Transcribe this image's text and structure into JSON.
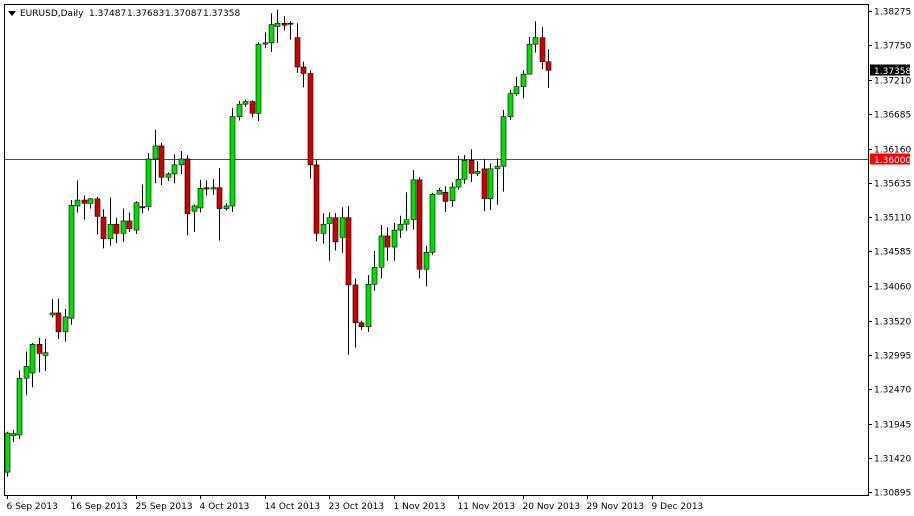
{
  "header": {
    "symbol": "EURUSD,Daily",
    "open": "1.37487",
    "high": "1.37683",
    "low": "1.37087",
    "close": "1.37358"
  },
  "colors": {
    "bull": "#00dd00",
    "bear": "#cc0000",
    "wick": "#000000",
    "level_line": "#ff0000",
    "level_tag": "#ff0000",
    "price_tag": "#000000",
    "background": "#ffffff"
  },
  "price_tag": {
    "label": "1.37358"
  },
  "level_tag": {
    "label": "1.36000"
  },
  "chart_data": {
    "type": "candlestick",
    "ylim": [
      1.3085,
      1.3836
    ],
    "grid": false,
    "y_ticks": [
      {
        "value": 1.38275,
        "label": "1.38275"
      },
      {
        "value": 1.3775,
        "label": "1.37750"
      },
      {
        "value": 1.3721,
        "label": "1.37210"
      },
      {
        "value": 1.36685,
        "label": "1.36685"
      },
      {
        "value": 1.3616,
        "label": "1.36160"
      },
      {
        "value": 1.35635,
        "label": "1.35635"
      },
      {
        "value": 1.3511,
        "label": "1.35110"
      },
      {
        "value": 1.34585,
        "label": "1.34585"
      },
      {
        "value": 1.3406,
        "label": "1.34060"
      },
      {
        "value": 1.3352,
        "label": "1.33520"
      },
      {
        "value": 1.32995,
        "label": "1.32995"
      },
      {
        "value": 1.3247,
        "label": "1.32470"
      },
      {
        "value": 1.31945,
        "label": "1.31945"
      },
      {
        "value": 1.3142,
        "label": "1.31420"
      },
      {
        "value": 1.30895,
        "label": "1.30895"
      }
    ],
    "x_ticks": [
      {
        "index": 0,
        "label": "6 Sep 2013"
      },
      {
        "index": 10,
        "label": "16 Sep 2013"
      },
      {
        "index": 20,
        "label": "25 Sep 2013"
      },
      {
        "index": 30,
        "label": "4 Oct 2013"
      },
      {
        "index": 40,
        "label": "14 Oct 2013"
      },
      {
        "index": 50,
        "label": "23 Oct 2013"
      },
      {
        "index": 60,
        "label": "1 Nov 2013"
      },
      {
        "index": 70,
        "label": "11 Nov 2013"
      },
      {
        "index": 80,
        "label": "20 Nov 2013"
      },
      {
        "index": 90,
        "label": "29 Nov 2013"
      },
      {
        "index": 100,
        "label": "9 Dec 2013"
      }
    ],
    "horizontal_line": 1.36,
    "candles": [
      {
        "o": 1.312,
        "h": 1.3182,
        "l": 1.3113,
        "c": 1.318
      },
      {
        "o": 1.3176,
        "h": 1.3185,
        "l": 1.3166,
        "c": 1.3179
      },
      {
        "o": 1.3177,
        "h": 1.3276,
        "l": 1.3171,
        "c": 1.3264
      },
      {
        "o": 1.3264,
        "h": 1.3305,
        "l": 1.3238,
        "c": 1.3282
      },
      {
        "o": 1.3272,
        "h": 1.3318,
        "l": 1.325,
        "c": 1.3316
      },
      {
        "o": 1.3316,
        "h": 1.3326,
        "l": 1.3273,
        "c": 1.3302
      },
      {
        "o": 1.3299,
        "h": 1.3324,
        "l": 1.3275,
        "c": 1.3303
      },
      {
        "o": 1.3361,
        "h": 1.3385,
        "l": 1.3357,
        "c": 1.3364
      },
      {
        "o": 1.3364,
        "h": 1.3386,
        "l": 1.3324,
        "c": 1.3335
      },
      {
        "o": 1.3335,
        "h": 1.337,
        "l": 1.332,
        "c": 1.3358
      },
      {
        "o": 1.3356,
        "h": 1.3537,
        "l": 1.3346,
        "c": 1.3529
      },
      {
        "o": 1.3528,
        "h": 1.3567,
        "l": 1.3518,
        "c": 1.3537
      },
      {
        "o": 1.3537,
        "h": 1.3544,
        "l": 1.3507,
        "c": 1.3532
      },
      {
        "o": 1.3532,
        "h": 1.354,
        "l": 1.3524,
        "c": 1.3539
      },
      {
        "o": 1.3539,
        "h": 1.3542,
        "l": 1.3484,
        "c": 1.3512
      },
      {
        "o": 1.3511,
        "h": 1.3523,
        "l": 1.3463,
        "c": 1.3478
      },
      {
        "o": 1.3478,
        "h": 1.3541,
        "l": 1.3467,
        "c": 1.35
      },
      {
        "o": 1.35,
        "h": 1.351,
        "l": 1.3471,
        "c": 1.3486
      },
      {
        "o": 1.3486,
        "h": 1.3524,
        "l": 1.3473,
        "c": 1.3505
      },
      {
        "o": 1.3505,
        "h": 1.3518,
        "l": 1.3488,
        "c": 1.3493
      },
      {
        "o": 1.3491,
        "h": 1.3535,
        "l": 1.3485,
        "c": 1.3533
      },
      {
        "o": 1.3527,
        "h": 1.3561,
        "l": 1.3517,
        "c": 1.3525
      },
      {
        "o": 1.3527,
        "h": 1.3609,
        "l": 1.3521,
        "c": 1.36
      },
      {
        "o": 1.36,
        "h": 1.3645,
        "l": 1.3563,
        "c": 1.362
      },
      {
        "o": 1.362,
        "h": 1.3625,
        "l": 1.356,
        "c": 1.3572
      },
      {
        "o": 1.3572,
        "h": 1.3579,
        "l": 1.3566,
        "c": 1.3577
      },
      {
        "o": 1.3577,
        "h": 1.3607,
        "l": 1.3563,
        "c": 1.3591
      },
      {
        "o": 1.3591,
        "h": 1.3612,
        "l": 1.3577,
        "c": 1.36
      },
      {
        "o": 1.36,
        "h": 1.3606,
        "l": 1.3483,
        "c": 1.3516
      },
      {
        "o": 1.352,
        "h": 1.353,
        "l": 1.3488,
        "c": 1.3528
      },
      {
        "o": 1.3525,
        "h": 1.3568,
        "l": 1.3518,
        "c": 1.3555
      },
      {
        "o": 1.3556,
        "h": 1.3567,
        "l": 1.3544,
        "c": 1.3554
      },
      {
        "o": 1.3554,
        "h": 1.3569,
        "l": 1.3545,
        "c": 1.3556
      },
      {
        "o": 1.3556,
        "h": 1.3586,
        "l": 1.3475,
        "c": 1.3524
      },
      {
        "o": 1.3524,
        "h": 1.3532,
        "l": 1.3521,
        "c": 1.3528
      },
      {
        "o": 1.3528,
        "h": 1.3678,
        "l": 1.3519,
        "c": 1.3665
      },
      {
        "o": 1.3665,
        "h": 1.3689,
        "l": 1.3659,
        "c": 1.3684
      },
      {
        "o": 1.3684,
        "h": 1.3691,
        "l": 1.368,
        "c": 1.3688
      },
      {
        "o": 1.3688,
        "h": 1.369,
        "l": 1.3664,
        "c": 1.367
      },
      {
        "o": 1.367,
        "h": 1.3779,
        "l": 1.3658,
        "c": 1.3776
      },
      {
        "o": 1.3776,
        "h": 1.3794,
        "l": 1.377,
        "c": 1.3778
      },
      {
        "o": 1.3778,
        "h": 1.3823,
        "l": 1.3764,
        "c": 1.3806
      },
      {
        "o": 1.3803,
        "h": 1.3829,
        "l": 1.3778,
        "c": 1.3808
      },
      {
        "o": 1.3808,
        "h": 1.3819,
        "l": 1.3797,
        "c": 1.3805
      },
      {
        "o": 1.3808,
        "h": 1.3811,
        "l": 1.3783,
        "c": 1.3807
      },
      {
        "o": 1.3786,
        "h": 1.3808,
        "l": 1.3732,
        "c": 1.3741
      },
      {
        "o": 1.3741,
        "h": 1.3749,
        "l": 1.371,
        "c": 1.3731
      },
      {
        "o": 1.3731,
        "h": 1.3736,
        "l": 1.357,
        "c": 1.3591
      },
      {
        "o": 1.3591,
        "h": 1.3598,
        "l": 1.3474,
        "c": 1.3486
      },
      {
        "o": 1.3486,
        "h": 1.3517,
        "l": 1.347,
        "c": 1.35
      },
      {
        "o": 1.3501,
        "h": 1.3518,
        "l": 1.3444,
        "c": 1.351
      },
      {
        "o": 1.351,
        "h": 1.3517,
        "l": 1.346,
        "c": 1.3473
      },
      {
        "o": 1.348,
        "h": 1.3526,
        "l": 1.3456,
        "c": 1.351
      },
      {
        "o": 1.351,
        "h": 1.3528,
        "l": 1.33,
        "c": 1.3407
      },
      {
        "o": 1.3407,
        "h": 1.3417,
        "l": 1.3311,
        "c": 1.3349
      },
      {
        "o": 1.3349,
        "h": 1.3352,
        "l": 1.3338,
        "c": 1.3343
      },
      {
        "o": 1.3343,
        "h": 1.3422,
        "l": 1.3335,
        "c": 1.3408
      },
      {
        "o": 1.3408,
        "h": 1.3459,
        "l": 1.3398,
        "c": 1.3434
      },
      {
        "o": 1.3434,
        "h": 1.3499,
        "l": 1.3417,
        "c": 1.3482
      },
      {
        "o": 1.3482,
        "h": 1.3495,
        "l": 1.3444,
        "c": 1.3465
      },
      {
        "o": 1.3465,
        "h": 1.3502,
        "l": 1.3444,
        "c": 1.3491
      },
      {
        "o": 1.3491,
        "h": 1.3513,
        "l": 1.3479,
        "c": 1.35
      },
      {
        "o": 1.35,
        "h": 1.3549,
        "l": 1.349,
        "c": 1.3507
      },
      {
        "o": 1.3507,
        "h": 1.3583,
        "l": 1.3492,
        "c": 1.3568
      },
      {
        "o": 1.3568,
        "h": 1.3572,
        "l": 1.3417,
        "c": 1.3431
      },
      {
        "o": 1.3431,
        "h": 1.3467,
        "l": 1.3405,
        "c": 1.3457
      },
      {
        "o": 1.3457,
        "h": 1.3548,
        "l": 1.3453,
        "c": 1.3546
      },
      {
        "o": 1.3546,
        "h": 1.3556,
        "l": 1.3548,
        "c": 1.3552
      },
      {
        "o": 1.3549,
        "h": 1.3558,
        "l": 1.3519,
        "c": 1.3535
      },
      {
        "o": 1.3536,
        "h": 1.3564,
        "l": 1.3527,
        "c": 1.3557
      },
      {
        "o": 1.3557,
        "h": 1.3605,
        "l": 1.3553,
        "c": 1.3569
      },
      {
        "o": 1.3569,
        "h": 1.3606,
        "l": 1.3562,
        "c": 1.3598
      },
      {
        "o": 1.3598,
        "h": 1.3615,
        "l": 1.3565,
        "c": 1.3578
      },
      {
        "o": 1.3578,
        "h": 1.3597,
        "l": 1.3574,
        "c": 1.3581
      },
      {
        "o": 1.3585,
        "h": 1.36,
        "l": 1.352,
        "c": 1.3539
      },
      {
        "o": 1.3539,
        "h": 1.3593,
        "l": 1.3522,
        "c": 1.3585
      },
      {
        "o": 1.3585,
        "h": 1.3601,
        "l": 1.353,
        "c": 1.3589
      },
      {
        "o": 1.3589,
        "h": 1.3675,
        "l": 1.355,
        "c": 1.3665
      },
      {
        "o": 1.3665,
        "h": 1.3706,
        "l": 1.366,
        "c": 1.37
      },
      {
        "o": 1.37,
        "h": 1.3726,
        "l": 1.3697,
        "c": 1.3711
      },
      {
        "o": 1.3711,
        "h": 1.3736,
        "l": 1.3693,
        "c": 1.373
      },
      {
        "o": 1.373,
        "h": 1.3787,
        "l": 1.373,
        "c": 1.3776
      },
      {
        "o": 1.3776,
        "h": 1.3811,
        "l": 1.3763,
        "c": 1.3786
      },
      {
        "o": 1.3786,
        "h": 1.3802,
        "l": 1.3738,
        "c": 1.3749
      },
      {
        "o": 1.3749,
        "h": 1.3768,
        "l": 1.3709,
        "c": 1.3736
      }
    ]
  }
}
